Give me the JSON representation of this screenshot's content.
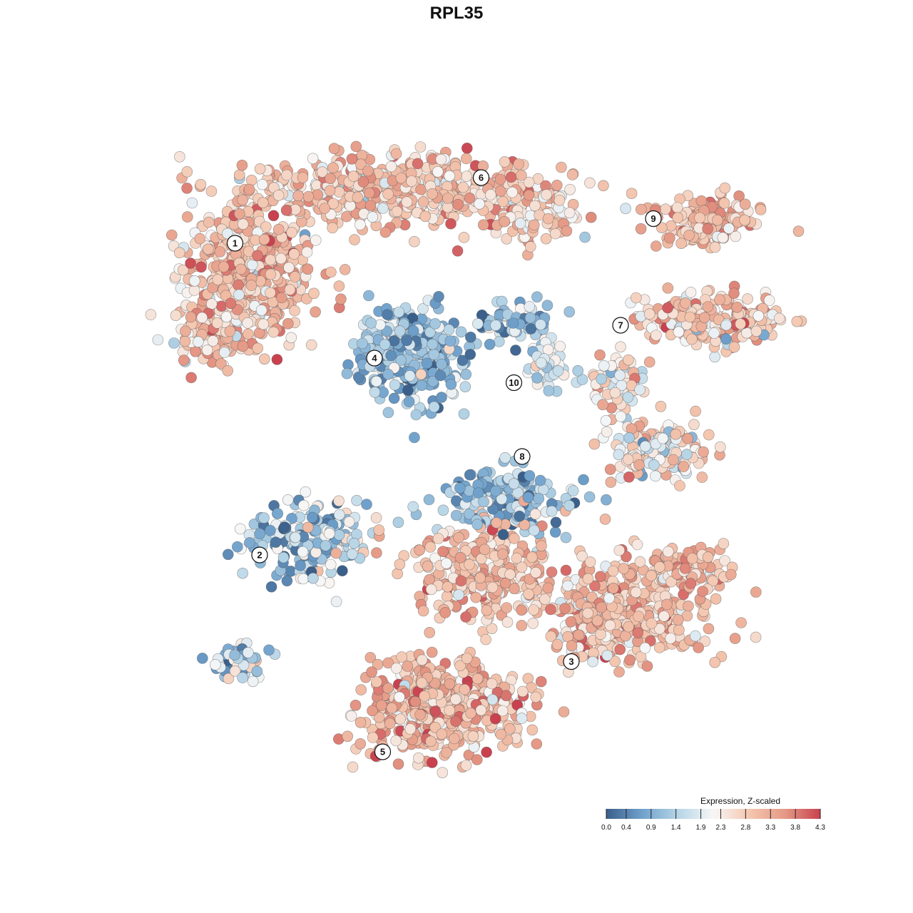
{
  "chart_data": {
    "type": "scatter",
    "title": "RPL35",
    "xlabel": "",
    "ylabel": "",
    "axes_visible": false,
    "grid": false,
    "colorbar": {
      "title": "Expression, Z-scaled",
      "min": 0.0,
      "max": 4.3,
      "tick_values": [
        0.0,
        0.4,
        0.9,
        1.4,
        1.9,
        2.3,
        2.8,
        3.3,
        3.8,
        4.3
      ],
      "tick_labels": [
        "0.0",
        "0.4",
        "0.9",
        "1.4",
        "1.9",
        "2.3",
        "2.8",
        "3.3",
        "3.8",
        "4.3"
      ],
      "colors": [
        "#3a5f8a",
        "#6fa1cc",
        "#b5d4e6",
        "#f7f7f7",
        "#f4c7b0",
        "#e59a86",
        "#c9414f"
      ],
      "placement": "bottom-right"
    },
    "clusters": [
      {
        "label": "1",
        "x": -27,
        "y": 24,
        "mean_expr": 2.9
      },
      {
        "label": "2",
        "x": -24,
        "y": -14,
        "mean_expr": 1.3
      },
      {
        "label": "3",
        "x": 14,
        "y": -27,
        "mean_expr": 3.0
      },
      {
        "label": "4",
        "x": -10,
        "y": 10,
        "mean_expr": 1.1
      },
      {
        "label": "5",
        "x": -9,
        "y": -38,
        "mean_expr": 3.1
      },
      {
        "label": "6",
        "x": 3,
        "y": 32,
        "mean_expr": 2.9
      },
      {
        "label": "7",
        "x": 20,
        "y": 14,
        "mean_expr": 2.9
      },
      {
        "label": "8",
        "x": 8,
        "y": -2,
        "mean_expr": 2.4
      },
      {
        "label": "9",
        "x": 24,
        "y": 27,
        "mean_expr": 3.0
      },
      {
        "label": "10",
        "x": 7,
        "y": 7,
        "mean_expr": 1.9
      }
    ]
  }
}
